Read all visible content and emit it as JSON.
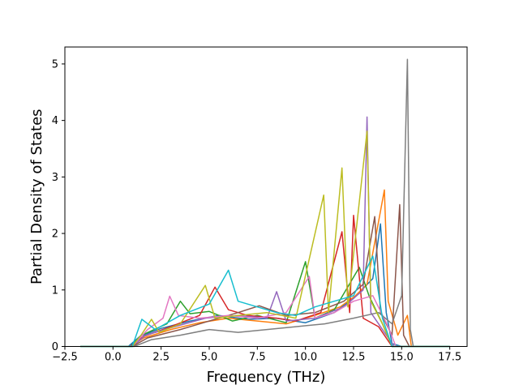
{
  "chart_data": {
    "type": "line",
    "title": "",
    "xlabel": "Frequency (THz)",
    "ylabel": "Partial Density of States",
    "xlim": [
      -2.5,
      18.4
    ],
    "ylim": [
      0,
      5.3
    ],
    "xticks": [
      -2.5,
      0.0,
      2.5,
      5.0,
      7.5,
      10.0,
      12.5,
      15.0,
      17.5
    ],
    "xtick_labels": [
      "−2.5",
      "0.0",
      "2.5",
      "5.0",
      "7.5",
      "10.0",
      "12.5",
      "15.0",
      "17.5"
    ],
    "yticks": [
      0,
      1,
      2,
      3,
      4,
      5
    ],
    "ytick_labels": [
      "0",
      "1",
      "2",
      "3",
      "4",
      "5"
    ],
    "grid": false,
    "legend": "none",
    "frequency_range": [
      -1.7,
      17.5
    ],
    "palette": [
      "#1f77b4",
      "#ff7f0e",
      "#2ca02c",
      "#d62728",
      "#9467bd",
      "#8c564b",
      "#e377c2",
      "#7f7f7f",
      "#bcbd22",
      "#17becf"
    ],
    "series": [
      {
        "color": "#1f77b4",
        "points": [
          [
            -1.7,
            0
          ],
          [
            0.8,
            0
          ],
          [
            1.4,
            0.18
          ],
          [
            2.5,
            0.32
          ],
          [
            4.0,
            0.45
          ],
          [
            5.5,
            0.55
          ],
          [
            7.0,
            0.48
          ],
          [
            8.5,
            0.5
          ],
          [
            10.0,
            0.42
          ],
          [
            11.5,
            0.6
          ],
          [
            12.5,
            0.85
          ],
          [
            13.5,
            1.2
          ],
          [
            13.9,
            2.17
          ],
          [
            14.2,
            0.6
          ],
          [
            14.5,
            0.05
          ],
          [
            15.0,
            0
          ],
          [
            17.5,
            0
          ]
        ]
      },
      {
        "color": "#ff7f0e",
        "points": [
          [
            -1.7,
            0
          ],
          [
            0.9,
            0
          ],
          [
            1.6,
            0.15
          ],
          [
            3.0,
            0.3
          ],
          [
            4.5,
            0.42
          ],
          [
            6.0,
            0.5
          ],
          [
            7.5,
            0.45
          ],
          [
            9.0,
            0.4
          ],
          [
            10.5,
            0.55
          ],
          [
            11.8,
            0.7
          ],
          [
            12.6,
            0.9
          ],
          [
            13.2,
            1.1
          ],
          [
            14.1,
            2.77
          ],
          [
            14.3,
            0.8
          ],
          [
            14.8,
            0.2
          ],
          [
            15.3,
            0.55
          ],
          [
            15.5,
            0
          ],
          [
            17.5,
            0
          ]
        ]
      },
      {
        "color": "#2ca02c",
        "points": [
          [
            -1.7,
            0
          ],
          [
            0.9,
            0
          ],
          [
            1.5,
            0.2
          ],
          [
            2.8,
            0.4
          ],
          [
            3.5,
            0.8
          ],
          [
            4.0,
            0.58
          ],
          [
            5.0,
            0.62
          ],
          [
            6.2,
            0.45
          ],
          [
            7.5,
            0.55
          ],
          [
            9.0,
            0.42
          ],
          [
            10.0,
            1.5
          ],
          [
            10.5,
            0.5
          ],
          [
            11.5,
            0.65
          ],
          [
            12.8,
            1.4
          ],
          [
            13.3,
            0.9
          ],
          [
            14.0,
            0.4
          ],
          [
            14.5,
            0
          ],
          [
            17.5,
            0
          ]
        ]
      },
      {
        "color": "#d62728",
        "points": [
          [
            -1.7,
            0
          ],
          [
            0.9,
            0
          ],
          [
            1.6,
            0.18
          ],
          [
            3.0,
            0.35
          ],
          [
            4.5,
            0.55
          ],
          [
            5.3,
            1.05
          ],
          [
            6.0,
            0.65
          ],
          [
            7.0,
            0.55
          ],
          [
            8.5,
            0.5
          ],
          [
            9.5,
            0.45
          ],
          [
            10.8,
            0.6
          ],
          [
            11.9,
            2.03
          ],
          [
            12.3,
            0.6
          ],
          [
            12.5,
            2.32
          ],
          [
            13.0,
            0.5
          ],
          [
            13.8,
            0.35
          ],
          [
            14.5,
            0
          ],
          [
            17.5,
            0
          ]
        ]
      },
      {
        "color": "#9467bd",
        "points": [
          [
            -1.7,
            0
          ],
          [
            1.0,
            0
          ],
          [
            1.7,
            0.2
          ],
          [
            3.2,
            0.35
          ],
          [
            4.8,
            0.5
          ],
          [
            6.5,
            0.55
          ],
          [
            8.0,
            0.5
          ],
          [
            8.5,
            0.97
          ],
          [
            9.0,
            0.45
          ],
          [
            10.5,
            0.5
          ],
          [
            12.0,
            0.7
          ],
          [
            13.0,
            1.0
          ],
          [
            13.2,
            4.06
          ],
          [
            13.4,
            0.6
          ],
          [
            14.0,
            0.3
          ],
          [
            14.6,
            0
          ],
          [
            17.5,
            0
          ]
        ]
      },
      {
        "color": "#8c564b",
        "points": [
          [
            -1.7,
            0
          ],
          [
            1.0,
            0
          ],
          [
            1.8,
            0.15
          ],
          [
            3.5,
            0.3
          ],
          [
            5.0,
            0.45
          ],
          [
            6.5,
            0.6
          ],
          [
            7.6,
            0.72
          ],
          [
            9.0,
            0.55
          ],
          [
            10.5,
            0.6
          ],
          [
            12.0,
            0.8
          ],
          [
            13.0,
            1.1
          ],
          [
            13.6,
            2.3
          ],
          [
            13.9,
            0.6
          ],
          [
            14.5,
            0.2
          ],
          [
            14.9,
            2.51
          ],
          [
            15.1,
            0.2
          ],
          [
            15.4,
            0
          ],
          [
            17.5,
            0
          ]
        ]
      },
      {
        "color": "#e377c2",
        "points": [
          [
            -1.7,
            0
          ],
          [
            1.0,
            0
          ],
          [
            1.8,
            0.3
          ],
          [
            2.6,
            0.5
          ],
          [
            2.95,
            0.89
          ],
          [
            3.4,
            0.55
          ],
          [
            4.5,
            0.5
          ],
          [
            6.0,
            0.55
          ],
          [
            7.5,
            0.5
          ],
          [
            9.0,
            0.6
          ],
          [
            10.2,
            1.24
          ],
          [
            10.5,
            0.5
          ],
          [
            11.5,
            0.6
          ],
          [
            12.5,
            0.8
          ],
          [
            13.5,
            0.9
          ],
          [
            14.3,
            0.35
          ],
          [
            14.7,
            0
          ],
          [
            17.5,
            0
          ]
        ]
      },
      {
        "color": "#7f7f7f",
        "points": [
          [
            -1.7,
            0
          ],
          [
            1.1,
            0
          ],
          [
            2.0,
            0.12
          ],
          [
            3.5,
            0.2
          ],
          [
            5.0,
            0.3
          ],
          [
            6.5,
            0.25
          ],
          [
            8.0,
            0.3
          ],
          [
            9.5,
            0.35
          ],
          [
            11.0,
            0.4
          ],
          [
            12.5,
            0.5
          ],
          [
            13.8,
            0.6
          ],
          [
            14.5,
            0.4
          ],
          [
            15.0,
            0.9
          ],
          [
            15.3,
            5.08
          ],
          [
            15.45,
            0.3
          ],
          [
            15.6,
            0
          ],
          [
            17.5,
            0
          ]
        ]
      },
      {
        "color": "#bcbd22",
        "points": [
          [
            -1.7,
            0
          ],
          [
            1.0,
            0
          ],
          [
            1.5,
            0.22
          ],
          [
            2.0,
            0.48
          ],
          [
            2.4,
            0.25
          ],
          [
            3.5,
            0.4
          ],
          [
            4.8,
            1.08
          ],
          [
            5.3,
            0.5
          ],
          [
            6.5,
            0.55
          ],
          [
            8.0,
            0.6
          ],
          [
            9.5,
            0.5
          ],
          [
            10.95,
            2.68
          ],
          [
            11.2,
            0.6
          ],
          [
            11.9,
            3.16
          ],
          [
            12.2,
            0.7
          ],
          [
            13.2,
            3.81
          ],
          [
            13.4,
            0.8
          ],
          [
            14.0,
            0.4
          ],
          [
            14.5,
            0
          ],
          [
            17.5,
            0
          ]
        ]
      },
      {
        "color": "#17becf",
        "points": [
          [
            -1.7,
            0
          ],
          [
            1.0,
            0
          ],
          [
            1.5,
            0.48
          ],
          [
            2.2,
            0.3
          ],
          [
            3.5,
            0.55
          ],
          [
            5.0,
            0.75
          ],
          [
            6.0,
            1.35
          ],
          [
            6.5,
            0.8
          ],
          [
            7.5,
            0.7
          ],
          [
            8.5,
            0.6
          ],
          [
            9.5,
            0.55
          ],
          [
            10.5,
            0.7
          ],
          [
            11.5,
            0.8
          ],
          [
            12.5,
            0.9
          ],
          [
            13.5,
            1.6
          ],
          [
            14.0,
            0.5
          ],
          [
            14.5,
            0
          ],
          [
            17.5,
            0
          ]
        ]
      }
    ]
  }
}
